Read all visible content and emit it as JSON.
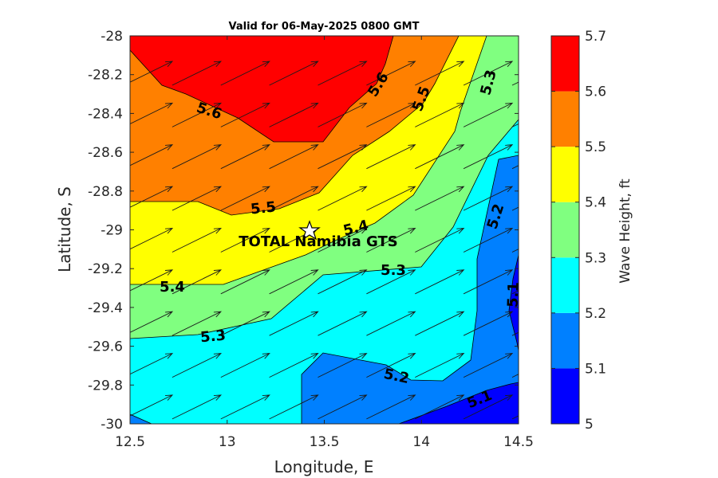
{
  "chart_data": {
    "type": "heatmap",
    "subtype": "filled-contour",
    "title": "Valid for 06-May-2025 0800 GMT",
    "xlabel": "Longitude, E",
    "ylabel": "Latitude, S",
    "xlim": [
      12.5,
      14.5
    ],
    "ylim": [
      -30,
      -28
    ],
    "xticks": [
      "12.5",
      "13",
      "13.5",
      "14",
      "14.5"
    ],
    "yticks": [
      "-28",
      "-28.2",
      "-28.4",
      "-28.6",
      "-28.8",
      "-29",
      "-29.2",
      "-29.4",
      "-29.6",
      "-29.8",
      "-30"
    ],
    "colorbar": {
      "label": "Wave Height, ft",
      "range": [
        5.0,
        5.7
      ],
      "ticks": [
        "5",
        "5.1",
        "5.2",
        "5.3",
        "5.4",
        "5.5",
        "5.6",
        "5.7"
      ],
      "colors": [
        "#0000ff",
        "#0080ff",
        "#00ffff",
        "#80ff80",
        "#ffff00",
        "#ff8000",
        "#ff0000"
      ]
    },
    "contour_labels": [
      "5.6",
      "5.6",
      "5.5",
      "5.5",
      "5.4",
      "5.4",
      "5.3",
      "5.3",
      "5.3",
      "5.2",
      "5.2",
      "5.1",
      "5.1"
    ],
    "site": {
      "name": "TOTAL Namibia GTS",
      "lon": 13.43,
      "lat": -29.0,
      "marker": "star"
    },
    "vectors": {
      "direction": "north-east",
      "note": "wave direction arrows"
    }
  }
}
